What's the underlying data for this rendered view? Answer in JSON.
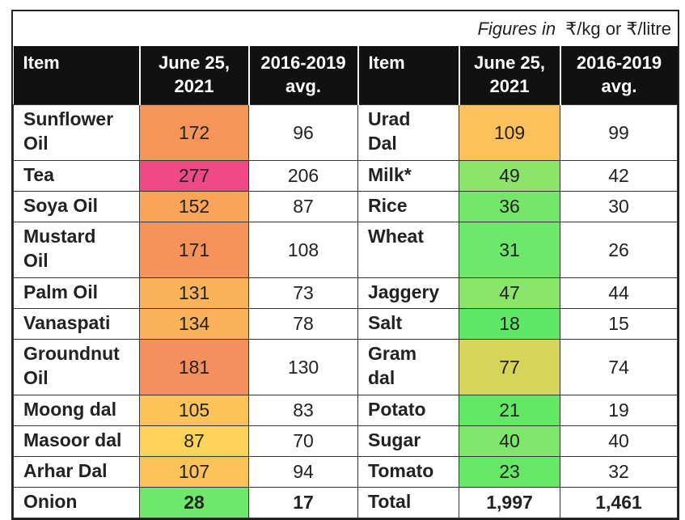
{
  "note": {
    "prefix": "Figures in",
    "unit": "₹/kg or ₹/litre"
  },
  "table": {
    "header": [
      "Item",
      "June 25, 2021",
      "2016-2019 avg.",
      "Item",
      "June 25, 2021",
      "2016-2019 avg."
    ],
    "rows": [
      [
        "Sunflower Oil",
        "172",
        "96",
        "Urad Dal",
        "109",
        "99"
      ],
      [
        "Tea",
        "277",
        "206",
        "Milk*",
        "49",
        "42"
      ],
      [
        "Soya Oil",
        "152",
        "87",
        "Rice",
        "36",
        "30"
      ],
      [
        "Mustard Oil",
        "171",
        "108",
        "Wheat",
        "31",
        "26"
      ],
      [
        "Palm Oil",
        "131",
        "73",
        "Jaggery",
        "47",
        "44"
      ],
      [
        "Vanaspati",
        "134",
        "78",
        "Salt",
        "18",
        "15"
      ],
      [
        "Groundnut Oil",
        "181",
        "130",
        "Gram dal",
        "77",
        "74"
      ],
      [
        "Moong dal",
        "105",
        "83",
        "Potato",
        "21",
        "19"
      ],
      [
        "Masoor dal",
        "87",
        "70",
        "Sugar",
        "40",
        "40"
      ],
      [
        "Arhar Dal",
        "107",
        "94",
        "Tomato",
        "23",
        "32"
      ],
      [
        "Onion",
        "28",
        "17",
        "Total",
        "1,997",
        "1,461"
      ]
    ],
    "left_colors": [
      "#f6955a",
      "#ef4a86",
      "#f8a55a",
      "#f6935a",
      "#fbb35a",
      "#fab15a",
      "#f5905e",
      "#fcc458",
      "#fdd35a",
      "#fcc35a",
      "#6ee86a"
    ],
    "right_colors": [
      "#fcc15a",
      "#8de46a",
      "#74e66a",
      "#6ee86a",
      "#8ae56a",
      "#5ee866",
      "#d6d45a",
      "#63e866",
      "#7ee66a",
      "#66e866",
      null
    ]
  }
}
